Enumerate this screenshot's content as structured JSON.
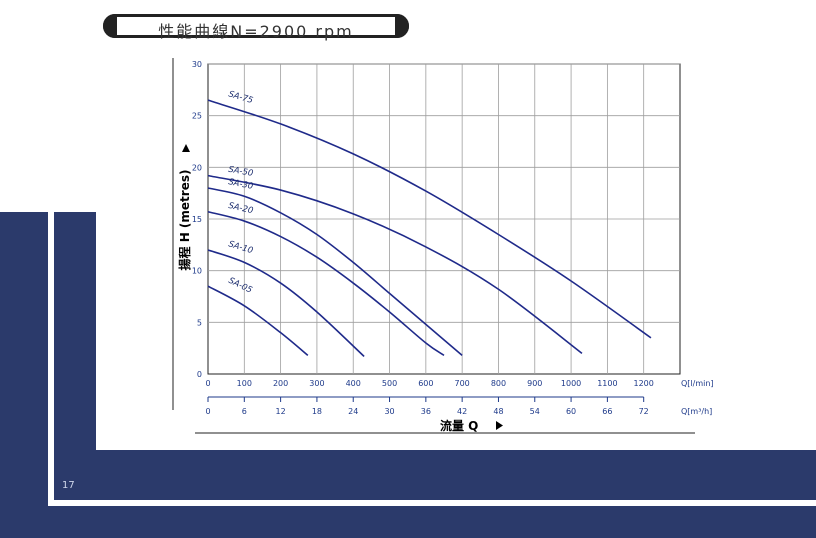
{
  "page": {
    "number": "17"
  },
  "title": "性能曲線N=2900 rpm",
  "colors": {
    "band": "#2b3a6b",
    "curve": "#1f2a8a",
    "grid": "#9e9e9e",
    "tick": "#1e3a8a"
  },
  "chart_data": {
    "type": "line",
    "title": "性能曲線N=2900 rpm",
    "ylabel": "揚程 H (metres)",
    "xlabel": "流量 Q",
    "ylim": [
      0,
      30
    ],
    "y_ticks": [
      "0",
      "5",
      "10",
      "15",
      "20",
      "25",
      "30"
    ],
    "xlim": [
      0,
      1300
    ],
    "x_ticks_lpm": [
      "0",
      "100",
      "200",
      "300",
      "400",
      "500",
      "600",
      "700",
      "800",
      "900",
      "1000",
      "1100",
      "1200"
    ],
    "x_unit_lpm": "Q[l/min]",
    "x_ticks_m3h": [
      "0",
      "6",
      "12",
      "18",
      "24",
      "30",
      "36",
      "42",
      "48",
      "54",
      "60",
      "66",
      "72"
    ],
    "x_unit_m3h": "Q[m³/h]",
    "grid": true,
    "series": [
      {
        "name": "SA-75",
        "x": [
          0,
          200,
          400,
          600,
          800,
          1000,
          1220
        ],
        "y": [
          26.5,
          24.2,
          21.3,
          17.7,
          13.5,
          9.0,
          3.5
        ]
      },
      {
        "name": "SA-50",
        "x": [
          0,
          200,
          400,
          600,
          800,
          1030
        ],
        "y": [
          19.2,
          17.8,
          15.5,
          12.3,
          8.2,
          2.0
        ]
      },
      {
        "name": "SA-30",
        "x": [
          0,
          100,
          200,
          300,
          400,
          500,
          600,
          700
        ],
        "y": [
          18.0,
          17.2,
          15.6,
          13.5,
          10.8,
          7.8,
          4.8,
          1.8
        ]
      },
      {
        "name": "SA-20",
        "x": [
          0,
          100,
          200,
          300,
          400,
          500,
          600,
          650
        ],
        "y": [
          15.7,
          14.8,
          13.3,
          11.3,
          8.8,
          6.0,
          3.0,
          1.8
        ]
      },
      {
        "name": "SA-10",
        "x": [
          0,
          100,
          200,
          300,
          430
        ],
        "y": [
          12.0,
          10.8,
          8.8,
          6.0,
          1.7
        ]
      },
      {
        "name": "SA-05",
        "x": [
          0,
          100,
          200,
          275
        ],
        "y": [
          8.5,
          6.6,
          4.0,
          1.8
        ]
      }
    ]
  }
}
